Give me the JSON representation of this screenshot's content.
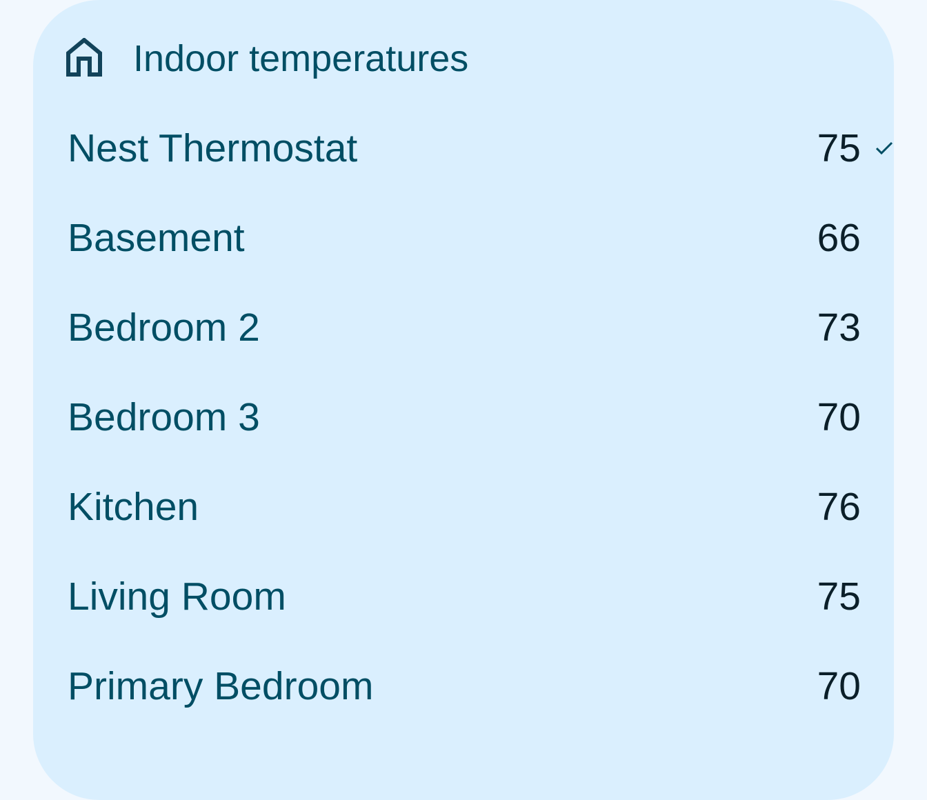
{
  "card": {
    "title": "Indoor temperatures",
    "icon": "home-icon",
    "rows": [
      {
        "name": "Nest Thermostat",
        "value": "75",
        "selected": true
      },
      {
        "name": "Basement",
        "value": "66"
      },
      {
        "name": "Bedroom 2",
        "value": "73"
      },
      {
        "name": "Bedroom 3",
        "value": "70"
      },
      {
        "name": "Kitchen",
        "value": "76"
      },
      {
        "name": "Living Room",
        "value": "75"
      },
      {
        "name": "Primary Bedroom",
        "value": "70"
      }
    ]
  },
  "colors": {
    "background": "#f2f8fe",
    "card": "#daeffe",
    "text": "#014e64",
    "value": "#0b1f29"
  }
}
